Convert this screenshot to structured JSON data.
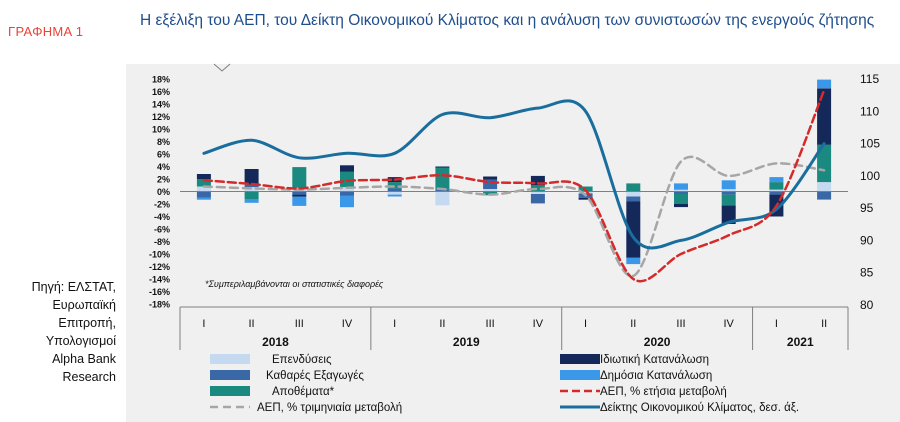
{
  "figure_label": "ΓΡΑΦΗΜΑ 1",
  "source_lines": [
    "Πηγή: ΕΛΣΤΑΤ,",
    "Ευρωπαϊκή",
    "Επιτροπή,",
    "Υπολογισμοί",
    "Alpha Bank",
    "Research"
  ],
  "colors": {
    "investment": "#c5d9f1",
    "net_exports": "#3a68a6",
    "inventories": "#1a8a80",
    "private": "#14285a",
    "public": "#3b97e8",
    "gdp_yoy": "#d42a2a",
    "gdp_qoq": "#a6a6a6",
    "esi": "#1a6e9e"
  },
  "chart_data": {
    "type": "bar",
    "title": "Η εξέλιξη του ΑΕΠ, του Δείκτη Οικονομικού Κλίματος και η ανάλυση των συνιστωσών της ενεργούς ζήτησης",
    "categories": [
      "I",
      "II",
      "III",
      "IV",
      "I",
      "II",
      "III",
      "IV",
      "I",
      "II",
      "III",
      "IV",
      "I",
      "II"
    ],
    "years": [
      {
        "label": "2018",
        "start": 0,
        "end": 4
      },
      {
        "label": "2019",
        "start": 4,
        "end": 8
      },
      {
        "label": "2020",
        "start": 8,
        "end": 12
      },
      {
        "label": "2021",
        "start": 12,
        "end": 14
      }
    ],
    "left_axis": {
      "min": -18,
      "max": 18,
      "step": 2,
      "unit": "%"
    },
    "right_axis": {
      "min": 80,
      "max": 115,
      "step": 5
    },
    "annotation": "*Συμπεριλαμβάνονται οι στατιστικές διαφορές",
    "series": [
      {
        "name": "Επενδύσεις",
        "key": "investment",
        "kind": "bar",
        "values": [
          0.8,
          0.7,
          0.6,
          0.7,
          -0.5,
          -2.2,
          0.4,
          -0.4,
          -0.3,
          -0.8,
          0.3,
          0.4,
          0.3,
          1.5
        ]
      },
      {
        "name": "Καθαρές Εξαγωγές",
        "key": "net_exports",
        "kind": "bar",
        "values": [
          -1.0,
          0.4,
          -0.5,
          -0.7,
          0.5,
          0.3,
          1.5,
          -1.5,
          -0.7,
          -0.8,
          -0.4,
          -0.5,
          -0.5,
          -1.3
        ]
      },
      {
        "name": "Αποθέματα*",
        "key": "inventories",
        "kind": "bar",
        "values": [
          1.2,
          -1.2,
          3.3,
          2.5,
          1.0,
          3.5,
          -0.6,
          1.0,
          0.8,
          1.3,
          -1.6,
          -1.7,
          1.2,
          6.0
        ]
      },
      {
        "name": "Ιδιωτική Κατανάλωση",
        "key": "private",
        "kind": "bar",
        "values": [
          0.8,
          2.5,
          -0.3,
          1.0,
          0.8,
          0.2,
          0.5,
          1.5,
          -0.3,
          -9.0,
          -0.5,
          -3.0,
          -3.5,
          9.0
        ]
      },
      {
        "name": "Δημόσια Κατανάλωση",
        "key": "public",
        "kind": "bar",
        "values": [
          -0.3,
          -0.6,
          -1.5,
          -1.8,
          -0.3,
          0.0,
          0.0,
          0.0,
          0.0,
          -1.0,
          1.0,
          1.4,
          0.8,
          1.4
        ]
      },
      {
        "name": "ΑΕΠ, % ετήσια μεταβολή",
        "key": "gdp_yoy",
        "kind": "line",
        "axis": "left",
        "values": [
          1.8,
          1.2,
          0.5,
          1.7,
          1.9,
          2.6,
          1.5,
          1.3,
          0.2,
          -14.0,
          -10.0,
          -7.0,
          -2.3,
          16.2
        ]
      },
      {
        "name": "ΑΕΠ, % τριμηνιαία μεταβολή",
        "key": "gdp_qoq",
        "kind": "line",
        "axis": "left",
        "values": [
          0.8,
          0.5,
          0.3,
          0.6,
          0.8,
          0.4,
          -0.5,
          0.4,
          -0.6,
          -13.5,
          4.8,
          2.5,
          4.5,
          3.4
        ]
      },
      {
        "name": "Δείκτης Οικονομικού Κλίματος, δεσ. άξ.",
        "key": "esi",
        "kind": "line",
        "axis": "right",
        "values": [
          103.5,
          105.5,
          102.8,
          103.5,
          103.5,
          109.5,
          109.0,
          110.5,
          110.0,
          90.5,
          90.0,
          92.8,
          94.8,
          105.0
        ]
      }
    ]
  }
}
